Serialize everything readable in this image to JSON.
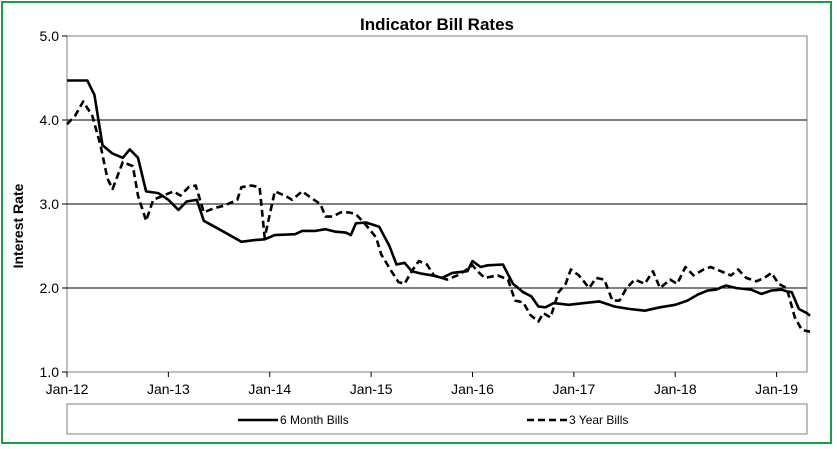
{
  "chart_data": {
    "type": "line",
    "title": "Indicator Bill Rates",
    "xlabel": "",
    "ylabel": "Interest Rate",
    "ylim": [
      1.0,
      5.0
    ],
    "yticks": [
      "1.0",
      "2.0",
      "3.0",
      "4.0",
      "5.0"
    ],
    "xticks": [
      "Jan-12",
      "Jan-13",
      "Jan-14",
      "Jan-15",
      "Jan-16",
      "Jan-17",
      "Jan-18",
      "Jan-19"
    ],
    "grid": true,
    "legend_position": "bottom",
    "series": [
      {
        "name": "6 Month Bills",
        "style": "solid",
        "color": "#000000",
        "points": [
          [
            2012.0,
            4.47
          ],
          [
            2012.2,
            4.47
          ],
          [
            2012.27,
            4.3
          ],
          [
            2012.35,
            3.7
          ],
          [
            2012.45,
            3.6
          ],
          [
            2012.55,
            3.55
          ],
          [
            2012.62,
            3.65
          ],
          [
            2012.7,
            3.55
          ],
          [
            2012.78,
            3.15
          ],
          [
            2012.9,
            3.13
          ],
          [
            2013.0,
            3.05
          ],
          [
            2013.1,
            2.93
          ],
          [
            2013.18,
            3.03
          ],
          [
            2013.28,
            3.05
          ],
          [
            2013.35,
            2.8
          ],
          [
            2013.5,
            2.7
          ],
          [
            2013.72,
            2.55
          ],
          [
            2013.85,
            2.57
          ],
          [
            2013.95,
            2.58
          ],
          [
            2014.05,
            2.63
          ],
          [
            2014.25,
            2.64
          ],
          [
            2014.32,
            2.68
          ],
          [
            2014.45,
            2.68
          ],
          [
            2014.55,
            2.7
          ],
          [
            2014.65,
            2.67
          ],
          [
            2014.75,
            2.66
          ],
          [
            2014.8,
            2.63
          ],
          [
            2014.85,
            2.77
          ],
          [
            2014.95,
            2.78
          ],
          [
            2015.08,
            2.73
          ],
          [
            2015.18,
            2.5
          ],
          [
            2015.25,
            2.28
          ],
          [
            2015.33,
            2.3
          ],
          [
            2015.4,
            2.2
          ],
          [
            2015.5,
            2.17
          ],
          [
            2015.6,
            2.15
          ],
          [
            2015.7,
            2.12
          ],
          [
            2015.8,
            2.18
          ],
          [
            2015.95,
            2.2
          ],
          [
            2016.0,
            2.32
          ],
          [
            2016.08,
            2.25
          ],
          [
            2016.15,
            2.27
          ],
          [
            2016.3,
            2.28
          ],
          [
            2016.4,
            2.05
          ],
          [
            2016.5,
            1.95
          ],
          [
            2016.58,
            1.9
          ],
          [
            2016.65,
            1.78
          ],
          [
            2016.72,
            1.77
          ],
          [
            2016.8,
            1.82
          ],
          [
            2016.95,
            1.8
          ],
          [
            2017.1,
            1.82
          ],
          [
            2017.25,
            1.84
          ],
          [
            2017.4,
            1.78
          ],
          [
            2017.55,
            1.75
          ],
          [
            2017.7,
            1.73
          ],
          [
            2017.85,
            1.77
          ],
          [
            2018.0,
            1.8
          ],
          [
            2018.12,
            1.85
          ],
          [
            2018.22,
            1.92
          ],
          [
            2018.32,
            1.97
          ],
          [
            2018.4,
            1.98
          ],
          [
            2018.5,
            2.03
          ],
          [
            2018.6,
            2.0
          ],
          [
            2018.75,
            1.98
          ],
          [
            2018.85,
            1.93
          ],
          [
            2018.95,
            1.97
          ],
          [
            2019.05,
            1.98
          ],
          [
            2019.1,
            1.96
          ],
          [
            2019.15,
            1.95
          ],
          [
            2019.22,
            1.75
          ],
          [
            2019.3,
            1.7
          ],
          [
            2019.33,
            1.67
          ]
        ]
      },
      {
        "name": "3 Year Bills",
        "style": "dashed",
        "color": "#000000",
        "points": [
          [
            2012.0,
            3.95
          ],
          [
            2012.08,
            4.05
          ],
          [
            2012.16,
            4.22
          ],
          [
            2012.25,
            4.05
          ],
          [
            2012.33,
            3.7
          ],
          [
            2012.4,
            3.3
          ],
          [
            2012.45,
            3.18
          ],
          [
            2012.55,
            3.5
          ],
          [
            2012.65,
            3.45
          ],
          [
            2012.7,
            3.1
          ],
          [
            2012.78,
            2.8
          ],
          [
            2012.85,
            3.05
          ],
          [
            2012.95,
            3.1
          ],
          [
            2013.05,
            3.15
          ],
          [
            2013.12,
            3.1
          ],
          [
            2013.2,
            3.2
          ],
          [
            2013.27,
            3.22
          ],
          [
            2013.35,
            2.9
          ],
          [
            2013.45,
            2.95
          ],
          [
            2013.55,
            2.98
          ],
          [
            2013.68,
            3.05
          ],
          [
            2013.72,
            3.2
          ],
          [
            2013.82,
            3.22
          ],
          [
            2013.9,
            3.2
          ],
          [
            2013.95,
            2.6
          ],
          [
            2014.05,
            3.15
          ],
          [
            2014.15,
            3.1
          ],
          [
            2014.22,
            3.05
          ],
          [
            2014.32,
            3.15
          ],
          [
            2014.4,
            3.08
          ],
          [
            2014.5,
            3.0
          ],
          [
            2014.55,
            2.85
          ],
          [
            2014.62,
            2.85
          ],
          [
            2014.7,
            2.9
          ],
          [
            2014.78,
            2.9
          ],
          [
            2014.85,
            2.88
          ],
          [
            2014.95,
            2.75
          ],
          [
            2015.05,
            2.6
          ],
          [
            2015.1,
            2.4
          ],
          [
            2015.2,
            2.2
          ],
          [
            2015.27,
            2.07
          ],
          [
            2015.33,
            2.05
          ],
          [
            2015.4,
            2.2
          ],
          [
            2015.47,
            2.32
          ],
          [
            2015.55,
            2.28
          ],
          [
            2015.62,
            2.15
          ],
          [
            2015.75,
            2.1
          ],
          [
            2015.85,
            2.15
          ],
          [
            2015.92,
            2.2
          ],
          [
            2016.0,
            2.27
          ],
          [
            2016.05,
            2.2
          ],
          [
            2016.12,
            2.12
          ],
          [
            2016.25,
            2.15
          ],
          [
            2016.35,
            2.1
          ],
          [
            2016.42,
            1.85
          ],
          [
            2016.5,
            1.83
          ],
          [
            2016.57,
            1.68
          ],
          [
            2016.65,
            1.6
          ],
          [
            2016.7,
            1.7
          ],
          [
            2016.77,
            1.65
          ],
          [
            2016.85,
            1.95
          ],
          [
            2016.92,
            2.05
          ],
          [
            2016.97,
            2.22
          ],
          [
            2017.05,
            2.15
          ],
          [
            2017.15,
            2.0
          ],
          [
            2017.22,
            2.12
          ],
          [
            2017.3,
            2.1
          ],
          [
            2017.38,
            1.85
          ],
          [
            2017.45,
            1.85
          ],
          [
            2017.52,
            2.0
          ],
          [
            2017.6,
            2.1
          ],
          [
            2017.7,
            2.05
          ],
          [
            2017.78,
            2.2
          ],
          [
            2017.85,
            2.0
          ],
          [
            2017.95,
            2.1
          ],
          [
            2018.02,
            2.05
          ],
          [
            2018.1,
            2.25
          ],
          [
            2018.18,
            2.15
          ],
          [
            2018.28,
            2.22
          ],
          [
            2018.35,
            2.25
          ],
          [
            2018.45,
            2.2
          ],
          [
            2018.55,
            2.15
          ],
          [
            2018.62,
            2.22
          ],
          [
            2018.7,
            2.12
          ],
          [
            2018.8,
            2.08
          ],
          [
            2018.88,
            2.12
          ],
          [
            2018.95,
            2.18
          ],
          [
            2019.02,
            2.05
          ],
          [
            2019.1,
            2.0
          ],
          [
            2019.18,
            1.65
          ],
          [
            2019.25,
            1.5
          ],
          [
            2019.33,
            1.48
          ]
        ]
      }
    ]
  }
}
